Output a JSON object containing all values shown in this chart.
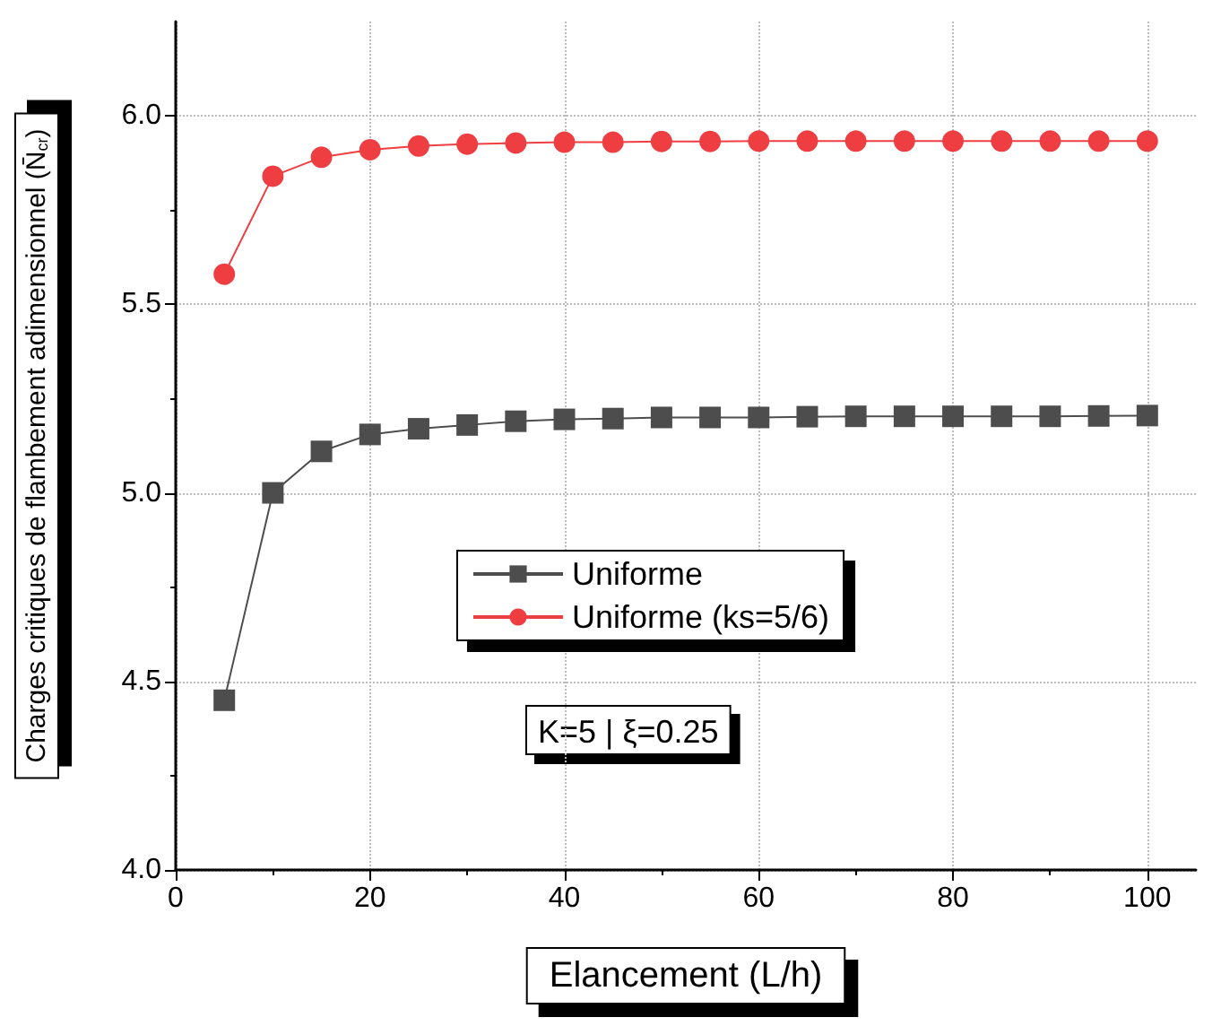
{
  "chart_data": {
    "type": "line",
    "xlabel": "Elancement (L/h)",
    "ylabel": "Charges critiques de flambement adimensionnel (N̄$_{cr}$)",
    "x": [
      5,
      10,
      15,
      20,
      25,
      30,
      35,
      40,
      45,
      50,
      55,
      60,
      65,
      70,
      75,
      80,
      85,
      90,
      95,
      100
    ],
    "series": [
      {
        "name": "Uniforme",
        "color": "#4d4d4d",
        "marker": "square",
        "values": [
          4.45,
          5.0,
          5.11,
          5.155,
          5.17,
          5.18,
          5.19,
          5.195,
          5.197,
          5.2,
          5.2,
          5.2,
          5.202,
          5.203,
          5.203,
          5.203,
          5.203,
          5.203,
          5.204,
          5.205
        ]
      },
      {
        "name": "Uniforme (ks=5/6)",
        "color": "#ef3e42",
        "marker": "circle",
        "values": [
          5.58,
          5.84,
          5.89,
          5.91,
          5.92,
          5.925,
          5.928,
          5.93,
          5.93,
          5.932,
          5.932,
          5.933,
          5.933,
          5.933,
          5.933,
          5.933,
          5.933,
          5.933,
          5.933,
          5.933
        ]
      }
    ],
    "xlim": [
      0,
      105
    ],
    "xticks": [
      0,
      20,
      40,
      60,
      80,
      100
    ],
    "ylim": [
      4.0,
      6.25
    ],
    "yticks": [
      {
        "value": 4.0,
        "label": "4.0"
      },
      {
        "value": 4.5,
        "label": "4.5"
      },
      {
        "value": 5.0,
        "label": "5.0"
      },
      {
        "value": 5.5,
        "label": "5.5"
      },
      {
        "value": 6.0,
        "label": "6.0"
      }
    ],
    "grid": true,
    "legend": "center",
    "line_style": "solid",
    "annotations": [
      "K=5 | ξ=0.25"
    ]
  }
}
